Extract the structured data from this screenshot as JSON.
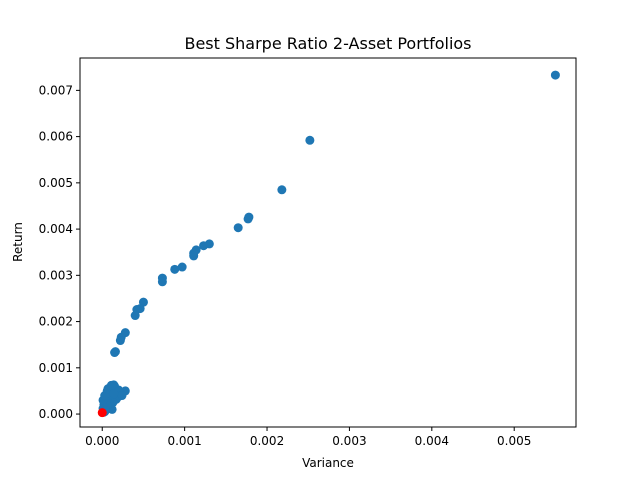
{
  "chart_data": {
    "type": "scatter",
    "title": "Best Sharpe Ratio 2-Asset Portfolios",
    "xlabel": "Variance",
    "ylabel": "Return",
    "xlim": [
      -0.00027,
      0.00575
    ],
    "ylim": [
      -0.00028,
      0.0077
    ],
    "xticks": [
      0.0,
      0.001,
      0.002,
      0.003,
      0.004,
      0.005
    ],
    "xtick_labels": [
      "0.000",
      "0.001",
      "0.002",
      "0.003",
      "0.004",
      "0.005"
    ],
    "yticks": [
      0.0,
      0.001,
      0.002,
      0.003,
      0.004,
      0.005,
      0.006,
      0.007
    ],
    "ytick_labels": [
      "0.000",
      "0.001",
      "0.002",
      "0.003",
      "0.004",
      "0.005",
      "0.006",
      "0.007"
    ],
    "grid": false,
    "series": [
      {
        "color": "#1f77b4",
        "points": [
          [
            0.0055,
            0.00733
          ],
          [
            0.00252,
            0.00592
          ],
          [
            0.00218,
            0.00485
          ],
          [
            0.00178,
            0.00426
          ],
          [
            0.00177,
            0.00422
          ],
          [
            0.00165,
            0.00403
          ],
          [
            0.0013,
            0.00368
          ],
          [
            0.00123,
            0.00364
          ],
          [
            0.00114,
            0.00355
          ],
          [
            0.00111,
            0.00348
          ],
          [
            0.00111,
            0.00342
          ],
          [
            0.00097,
            0.00318
          ],
          [
            0.00088,
            0.00313
          ],
          [
            0.00073,
            0.00294
          ],
          [
            0.00073,
            0.00286
          ],
          [
            0.0005,
            0.00242
          ],
          [
            0.00046,
            0.00228
          ],
          [
            0.00042,
            0.00226
          ],
          [
            0.0004,
            0.00213
          ],
          [
            0.00028,
            0.00176
          ],
          [
            0.00023,
            0.00166
          ],
          [
            0.00022,
            0.00159
          ],
          [
            0.00016,
            0.00135
          ],
          [
            0.00015,
            0.00133
          ],
          [
            0.00028,
            0.0005
          ],
          [
            0.00025,
            0.00047
          ],
          [
            0.00022,
            0.00045
          ],
          [
            0.0002,
            0.00052
          ],
          [
            0.00018,
            0.00042
          ],
          [
            0.00016,
            0.00055
          ],
          [
            0.00015,
            0.0006
          ],
          [
            0.00014,
            0.00063
          ],
          [
            0.00013,
            0.00048
          ],
          [
            0.00012,
            0.00058
          ],
          [
            0.00011,
            0.00035
          ],
          [
            0.0001,
            0.0004
          ],
          [
            0.0001,
            0.00052
          ],
          [
            9e-05,
            0.00045
          ],
          [
            8e-05,
            0.0003
          ],
          [
            7e-05,
            0.00038
          ],
          [
            6e-05,
            0.0005
          ],
          [
            5e-05,
            0.00042
          ],
          [
            4e-05,
            0.00025
          ],
          [
            3e-05,
            0.00033
          ],
          [
            2e-05,
            0.0002
          ],
          [
            1e-05,
            0.00012
          ],
          [
            0.00012,
            0.0001
          ],
          [
            8e-05,
            0.00015
          ],
          [
            5e-05,
            0.0001
          ],
          [
            3e-05,
            5e-05
          ],
          [
            0.0002,
            0.00038
          ],
          [
            0.00017,
            0.00032
          ],
          [
            0.00013,
            0.00025
          ],
          [
            9e-05,
            0.00022
          ],
          [
            6e-05,
            0.00018
          ],
          [
            4e-05,
            8e-05
          ],
          [
            2e-05,
            4e-05
          ],
          [
            1e-05,
            0.0003
          ],
          [
            3e-05,
            0.0004
          ],
          [
            7e-05,
            0.00055
          ],
          [
            0.00011,
            0.00062
          ],
          [
            0.00019,
            0.00048
          ],
          [
            0.00024,
            0.0004
          ],
          [
            0.00014,
            0.00044
          ]
        ]
      },
      {
        "color": "#ff0000",
        "points": [
          [
            0.0,
            3e-05
          ]
        ]
      }
    ]
  }
}
